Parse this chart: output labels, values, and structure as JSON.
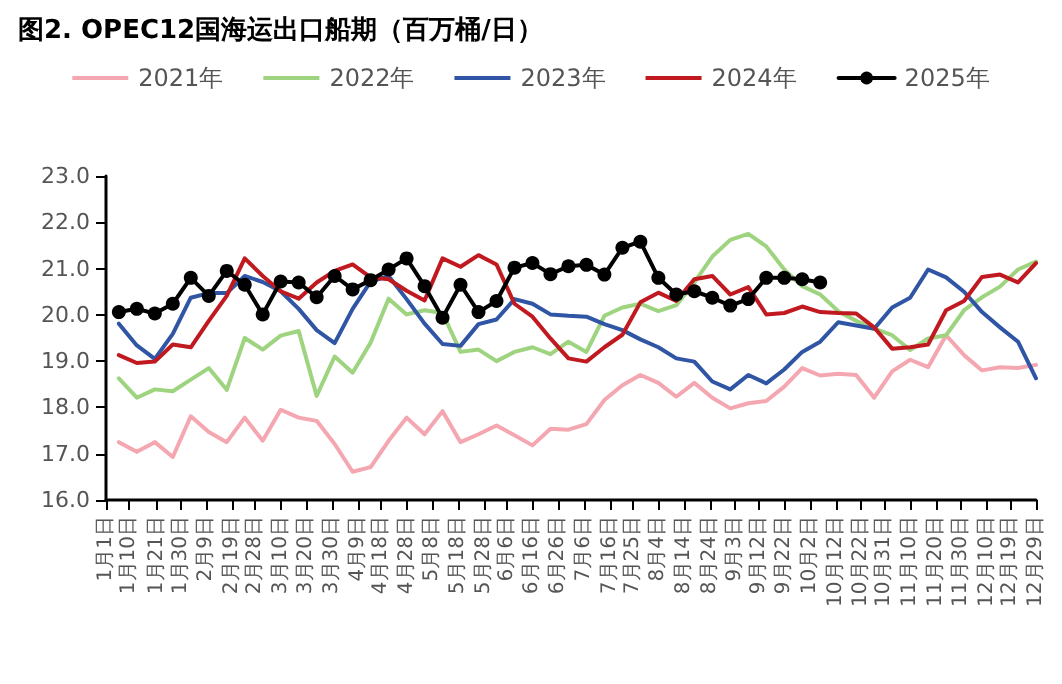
{
  "chart_data": {
    "type": "line",
    "title": "图2. OPEC12国海运出口船期（百万桶/日）",
    "x": [
      "--01-06",
      "--01-13",
      "--01-20",
      "--01-27",
      "--02-03",
      "--02-10",
      "--02-17",
      "--02-24",
      "--03-03",
      "--03-10",
      "--03-17",
      "--03-24",
      "--03-31",
      "--04-07",
      "--04-14",
      "--04-21",
      "--04-28",
      "--05-05",
      "--05-12",
      "--05-19",
      "--05-26",
      "--06-02",
      "--06-09",
      "--06-16",
      "--06-23",
      "--06-30",
      "--07-07",
      "--07-14",
      "--07-21",
      "--07-28",
      "--08-04",
      "--08-11",
      "--08-18",
      "--08-25",
      "--09-01",
      "--09-08",
      "--09-15",
      "--09-22",
      "--09-29",
      "--10-06",
      "--10-13",
      "--10-20",
      "--10-27",
      "--11-03",
      "--11-10",
      "--11-17",
      "--11-24",
      "--12-01",
      "--12-08",
      "--12-15",
      "--12-22",
      "--12-29"
    ],
    "series": [
      {
        "name": "2021年",
        "color": "#f4a7b0",
        "values": [
          17.25,
          17.04,
          17.25,
          16.93,
          17.81,
          17.47,
          17.25,
          17.78,
          17.28,
          17.95,
          17.78,
          17.71,
          17.21,
          16.61,
          16.71,
          17.28,
          17.78,
          17.42,
          17.92,
          17.25,
          17.42,
          17.61,
          17.4,
          17.18,
          17.54,
          17.52,
          17.64,
          18.16,
          18.48,
          18.7,
          18.53,
          18.23,
          18.53,
          18.21,
          17.98,
          18.09,
          18.14,
          18.45,
          18.85,
          18.69,
          18.73,
          18.7,
          18.21,
          18.78,
          19.03,
          18.87,
          19.56,
          19.13,
          18.8,
          18.87,
          18.85,
          18.92
        ]
      },
      {
        "name": "2022年",
        "color": "#9ed47f",
        "values": [
          18.63,
          18.21,
          18.39,
          18.35,
          18.6,
          18.85,
          18.38,
          19.5,
          19.25,
          19.55,
          19.65,
          18.25,
          19.1,
          18.75,
          19.4,
          20.35,
          20.01,
          20.1,
          20.04,
          19.2,
          19.25,
          19.0,
          19.2,
          19.3,
          19.15,
          19.42,
          19.2,
          19.98,
          20.16,
          20.24,
          20.08,
          20.21,
          20.7,
          21.26,
          21.62,
          21.75,
          21.48,
          20.98,
          20.62,
          20.44,
          20.08,
          19.87,
          19.7,
          19.56,
          19.24,
          19.49,
          19.56,
          20.1,
          20.38,
          20.61,
          20.98,
          21.15
        ]
      },
      {
        "name": "2023年",
        "color": "#2f55a4",
        "values": [
          19.81,
          19.34,
          19.05,
          19.59,
          20.37,
          20.47,
          20.47,
          20.84,
          20.71,
          20.51,
          20.13,
          19.67,
          19.39,
          20.13,
          20.72,
          20.84,
          20.34,
          19.81,
          19.37,
          19.33,
          19.8,
          19.9,
          20.34,
          20.24,
          20.01,
          19.98,
          19.96,
          19.8,
          19.67,
          19.47,
          19.3,
          19.06,
          18.99,
          18.56,
          18.39,
          18.7,
          18.52,
          18.82,
          19.2,
          19.42,
          19.84,
          19.77,
          19.7,
          20.16,
          20.37,
          20.98,
          20.81,
          20.5,
          20.06,
          19.73,
          19.42,
          18.63
        ]
      },
      {
        "name": "2024年",
        "color": "#c0191f",
        "values": [
          19.13,
          18.96,
          18.99,
          19.36,
          19.3,
          19.87,
          20.41,
          21.22,
          20.84,
          20.51,
          20.35,
          20.7,
          20.95,
          21.09,
          20.81,
          20.77,
          20.52,
          20.31,
          21.22,
          21.04,
          21.29,
          21.09,
          20.24,
          19.96,
          19.49,
          19.06,
          18.99,
          19.3,
          19.57,
          20.27,
          20.48,
          20.3,
          20.77,
          20.84,
          20.44,
          20.6,
          20.01,
          20.04,
          20.18,
          20.06,
          20.04,
          20.03,
          19.73,
          19.27,
          19.3,
          19.36,
          20.1,
          20.3,
          20.82,
          20.87,
          20.7,
          21.12
        ]
      },
      {
        "name": "2025年",
        "color": "#000000",
        "marker": "circle",
        "values": [
          20.06,
          20.13,
          20.03,
          20.24,
          20.8,
          20.41,
          20.95,
          20.65,
          20.01,
          20.72,
          20.7,
          20.38,
          20.84,
          20.55,
          20.75,
          20.98,
          21.22,
          20.62,
          19.94,
          20.65,
          20.06,
          20.3,
          21.02,
          21.12,
          20.88,
          21.05,
          21.08,
          20.87,
          21.45,
          21.58,
          20.8,
          20.44,
          20.51,
          20.37,
          20.2,
          20.34,
          20.8,
          20.8,
          20.77,
          20.7,
          null,
          null,
          null,
          null,
          null,
          null,
          null,
          null,
          null,
          null,
          null,
          null
        ]
      }
    ],
    "xlim": [
      "--01-01",
      "--12-29"
    ],
    "xticks": [
      {
        "value": "--01-01",
        "label": "1月1日"
      },
      {
        "value": "--01-10",
        "label": "1月10日"
      },
      {
        "value": "--01-21",
        "label": "1月21日"
      },
      {
        "value": "--01-30",
        "label": "1月30日"
      },
      {
        "value": "--02-09",
        "label": "2月9日"
      },
      {
        "value": "--02-19",
        "label": "2月19日"
      },
      {
        "value": "--02-28",
        "label": "2月28日"
      },
      {
        "value": "--03-10",
        "label": "3月10日"
      },
      {
        "value": "--03-20",
        "label": "3月20日"
      },
      {
        "value": "--03-30",
        "label": "3月30日"
      },
      {
        "value": "--04-09",
        "label": "4月9日"
      },
      {
        "value": "--04-18",
        "label": "4月18日"
      },
      {
        "value": "--04-28",
        "label": "4月28日"
      },
      {
        "value": "--05-08",
        "label": "5月8日"
      },
      {
        "value": "--05-18",
        "label": "5月18日"
      },
      {
        "value": "--05-28",
        "label": "5月28日"
      },
      {
        "value": "--06-06",
        "label": "6月6日"
      },
      {
        "value": "--06-16",
        "label": "6月16日"
      },
      {
        "value": "--06-26",
        "label": "6月26日"
      },
      {
        "value": "--07-06",
        "label": "7月6日"
      },
      {
        "value": "--07-16",
        "label": "7月16日"
      },
      {
        "value": "--07-25",
        "label": "7月25日"
      },
      {
        "value": "--08-04",
        "label": "8月4日"
      },
      {
        "value": "--08-14",
        "label": "8月14日"
      },
      {
        "value": "--08-24",
        "label": "8月24日"
      },
      {
        "value": "--09-03",
        "label": "9月3日"
      },
      {
        "value": "--09-12",
        "label": "9月12日"
      },
      {
        "value": "--09-22",
        "label": "9月22日"
      },
      {
        "value": "--10-02",
        "label": "10月2日"
      },
      {
        "value": "--10-12",
        "label": "10月12日"
      },
      {
        "value": "--10-22",
        "label": "10月22日"
      },
      {
        "value": "--10-31",
        "label": "10月31日"
      },
      {
        "value": "--11-10",
        "label": "11月10日"
      },
      {
        "value": "--11-20",
        "label": "11月20日"
      },
      {
        "value": "--11-30",
        "label": "11月30日"
      },
      {
        "value": "--12-10",
        "label": "12月10日"
      },
      {
        "value": "--12-19",
        "label": "12月19日"
      },
      {
        "value": "--12-29",
        "label": "12月29日"
      }
    ],
    "ylim": [
      16,
      23
    ],
    "yticks": [
      {
        "value": 16,
        "label": "16.0"
      },
      {
        "value": 17,
        "label": "17.0"
      },
      {
        "value": 18,
        "label": "18.0"
      },
      {
        "value": 19,
        "label": "19.0"
      },
      {
        "value": 20,
        "label": "20.0"
      },
      {
        "value": 21,
        "label": "21.0"
      },
      {
        "value": 22,
        "label": "22.0"
      },
      {
        "value": 23,
        "label": "23.0"
      }
    ],
    "legend": "top"
  }
}
